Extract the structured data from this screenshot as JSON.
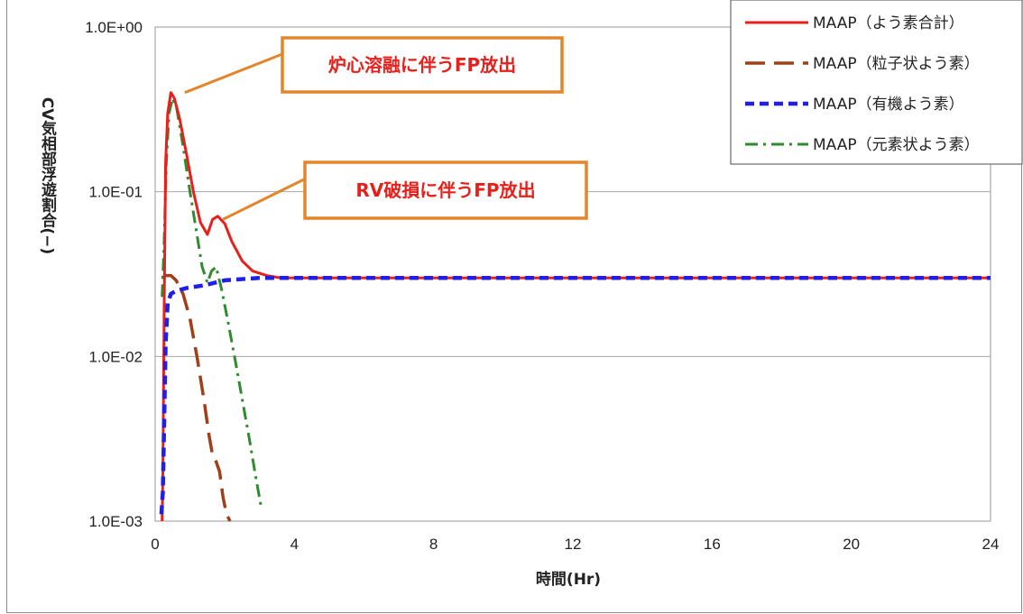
{
  "chart_data": {
    "type": "line",
    "xlabel": "時間(Hr)",
    "ylabel": "CV気相部浮遊割合(−)",
    "y_scale": "log",
    "xlim": [
      0,
      24
    ],
    "ylim": [
      0.001,
      1
    ],
    "x_ticks": [
      "0",
      "4",
      "8",
      "12",
      "16",
      "20",
      "24"
    ],
    "y_ticks": [
      "1.0E-03",
      "1.0E-02",
      "1.0E-01",
      "1.0E+00"
    ],
    "grid": "horizontal",
    "legend_position": "top-right",
    "series": [
      {
        "name": "MAAP（よう素合計）",
        "color": "#e8201b",
        "dash": "solid",
        "points": [
          [
            0.2,
            0.001
          ],
          [
            0.22,
            0.0018
          ],
          [
            0.26,
            0.02
          ],
          [
            0.3,
            0.15
          ],
          [
            0.36,
            0.3
          ],
          [
            0.45,
            0.4
          ],
          [
            0.55,
            0.37
          ],
          [
            0.7,
            0.28
          ],
          [
            0.9,
            0.17
          ],
          [
            1.1,
            0.1
          ],
          [
            1.3,
            0.065
          ],
          [
            1.5,
            0.055
          ],
          [
            1.65,
            0.068
          ],
          [
            1.8,
            0.071
          ],
          [
            2.0,
            0.064
          ],
          [
            2.2,
            0.05
          ],
          [
            2.5,
            0.038
          ],
          [
            2.8,
            0.033
          ],
          [
            3.2,
            0.031
          ],
          [
            3.6,
            0.03
          ],
          [
            24,
            0.03
          ]
        ]
      },
      {
        "name": "MAAP（粒子状よう素）",
        "color": "#a0401a",
        "dash": "long-dash",
        "points": [
          [
            0.2,
            0.03
          ],
          [
            0.3,
            0.031
          ],
          [
            0.45,
            0.031
          ],
          [
            0.6,
            0.029
          ],
          [
            0.8,
            0.024
          ],
          [
            1.0,
            0.017
          ],
          [
            1.2,
            0.01
          ],
          [
            1.4,
            0.0055
          ],
          [
            1.55,
            0.0033
          ],
          [
            1.65,
            0.0025
          ],
          [
            1.75,
            0.0023
          ],
          [
            1.85,
            0.002
          ],
          [
            1.95,
            0.0014
          ],
          [
            2.05,
            0.0011
          ],
          [
            2.15,
            0.001
          ]
        ]
      },
      {
        "name": "MAAP（有機よう素）",
        "color": "#1f1fe8",
        "dash": "short-dash",
        "points": [
          [
            0.18,
            0.0011
          ],
          [
            0.22,
            0.0015
          ],
          [
            0.26,
            0.004
          ],
          [
            0.3,
            0.012
          ],
          [
            0.36,
            0.021
          ],
          [
            0.45,
            0.024
          ],
          [
            0.6,
            0.025
          ],
          [
            0.9,
            0.026
          ],
          [
            1.4,
            0.027
          ],
          [
            2.0,
            0.029
          ],
          [
            3.0,
            0.03
          ],
          [
            24,
            0.03
          ]
        ]
      },
      {
        "name": "MAAP（元素状よう素）",
        "color": "#2e8b2e",
        "dash": "dash-dot",
        "points": [
          [
            0.2,
            0.023
          ],
          [
            0.26,
            0.05
          ],
          [
            0.32,
            0.15
          ],
          [
            0.4,
            0.3
          ],
          [
            0.5,
            0.37
          ],
          [
            0.62,
            0.32
          ],
          [
            0.8,
            0.19
          ],
          [
            1.0,
            0.1
          ],
          [
            1.2,
            0.055
          ],
          [
            1.35,
            0.035
          ],
          [
            1.5,
            0.028
          ],
          [
            1.62,
            0.033
          ],
          [
            1.75,
            0.035
          ],
          [
            1.9,
            0.026
          ],
          [
            2.1,
            0.016
          ],
          [
            2.3,
            0.0095
          ],
          [
            2.5,
            0.0055
          ],
          [
            2.7,
            0.0032
          ],
          [
            2.9,
            0.0018
          ],
          [
            3.05,
            0.0012
          ]
        ]
      }
    ],
    "annotations": [
      {
        "text": "炉心溶融に伴うFP放出",
        "target": [
          0.85,
          0.4
        ]
      },
      {
        "text": "RV破損に伴うFP放出",
        "target": [
          1.95,
          0.068
        ]
      }
    ]
  }
}
